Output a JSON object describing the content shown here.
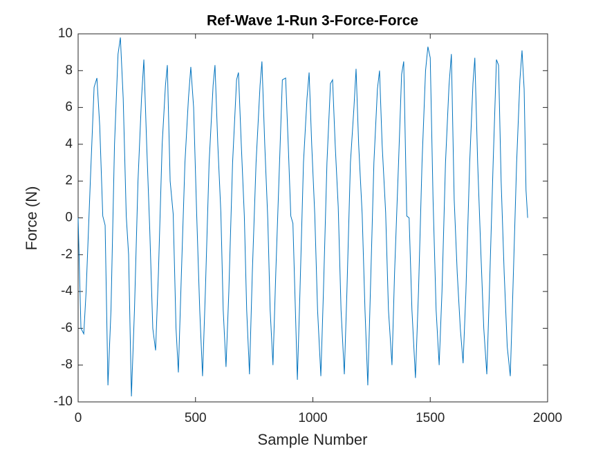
{
  "chart_data": {
    "type": "line",
    "title": "Ref-Wave 1-Run 3-Force-Force",
    "x_label": "Sample Number",
    "y_label": "Force (N)",
    "xlim": [
      0,
      2000
    ],
    "ylim": [
      -10,
      10
    ],
    "xticks": [
      0,
      500,
      1000,
      1500,
      2000
    ],
    "yticks": [
      -10,
      -8,
      -6,
      -4,
      -2,
      0,
      2,
      4,
      6,
      8,
      10
    ],
    "box": true,
    "x": [
      0,
      12,
      24,
      34,
      52,
      68,
      80,
      92,
      105,
      115,
      127,
      140,
      155,
      170,
      180,
      192,
      205,
      215,
      227,
      240,
      255,
      270,
      280,
      292,
      305,
      318,
      330,
      342,
      358,
      372,
      380,
      392,
      405,
      417,
      427,
      440,
      455,
      470,
      480,
      492,
      505,
      518,
      530,
      542,
      558,
      575,
      583,
      595,
      608,
      618,
      630,
      642,
      658,
      675,
      683,
      695,
      708,
      718,
      730,
      742,
      758,
      775,
      783,
      795,
      808,
      818,
      830,
      842,
      858,
      870,
      884,
      895,
      906,
      915,
      934,
      945,
      960,
      975,
      984,
      995,
      1008,
      1020,
      1034,
      1045,
      1060,
      1075,
      1084,
      1095,
      1108,
      1120,
      1134,
      1145,
      1160,
      1175,
      1184,
      1195,
      1210,
      1222,
      1234,
      1245,
      1260,
      1275,
      1284,
      1295,
      1310,
      1322,
      1337,
      1348,
      1365,
      1378,
      1387,
      1400,
      1410,
      1422,
      1437,
      1450,
      1465,
      1480,
      1490,
      1500,
      1512,
      1525,
      1538,
      1550,
      1565,
      1580,
      1590,
      1602,
      1615,
      1628,
      1640,
      1652,
      1668,
      1682,
      1690,
      1702,
      1716,
      1728,
      1741,
      1752,
      1768,
      1782,
      1791,
      1802,
      1815,
      1828,
      1841,
      1852,
      1868,
      1882,
      1891,
      1900,
      1908,
      1915
    ],
    "series": [
      {
        "name": "Force",
        "color": "#0072BD",
        "values": [
          0,
          -6,
          -6.3,
          -4,
          2,
          7.1,
          7.6,
          5,
          0.1,
          -0.4,
          -9.1,
          -5,
          4,
          8.9,
          9.8,
          6.5,
          0.1,
          -2,
          -9.7,
          -5,
          2,
          6.5,
          8.6,
          4,
          -0.6,
          -6,
          -7.2,
          -3,
          4,
          7.2,
          8.3,
          2,
          0.2,
          -6,
          -8.4,
          -3,
          3,
          6.5,
          8.2,
          6,
          0.2,
          -5,
          -8.6,
          -4,
          3,
          7.2,
          8.3,
          4,
          0.3,
          -5,
          -8.1,
          -4,
          3,
          7.5,
          7.9,
          4,
          0.1,
          -5,
          -8.5,
          -3,
          3,
          7.2,
          8.5,
          4,
          -0.1,
          -5,
          -8.0,
          -3,
          3,
          7.5,
          7.6,
          4,
          0.1,
          -0.3,
          -8.8,
          -4,
          3,
          6.5,
          7.9,
          4,
          0.2,
          -5,
          -8.6,
          -4,
          3,
          7.3,
          7.5,
          4,
          0.6,
          -5,
          -8.5,
          -4,
          3,
          6,
          8.1,
          4,
          0.2,
          -5,
          -9.1,
          -4,
          3,
          7,
          8.0,
          4,
          0.3,
          -5,
          -8.0,
          -3,
          3,
          7.8,
          8.5,
          0.1,
          0,
          -5,
          -8.7,
          -4,
          3,
          8,
          9.3,
          8.7,
          1,
          -5,
          -8.0,
          -4,
          3,
          7.2,
          8.9,
          1,
          -3,
          -6,
          -7.9,
          -4,
          3,
          7.3,
          8.7,
          3,
          -2,
          -6,
          -8.5,
          -4,
          3,
          8.6,
          8.3,
          2,
          -3,
          -7,
          -8.6,
          -4,
          3,
          7.5,
          9.1,
          7,
          1.5,
          0
        ]
      }
    ]
  }
}
